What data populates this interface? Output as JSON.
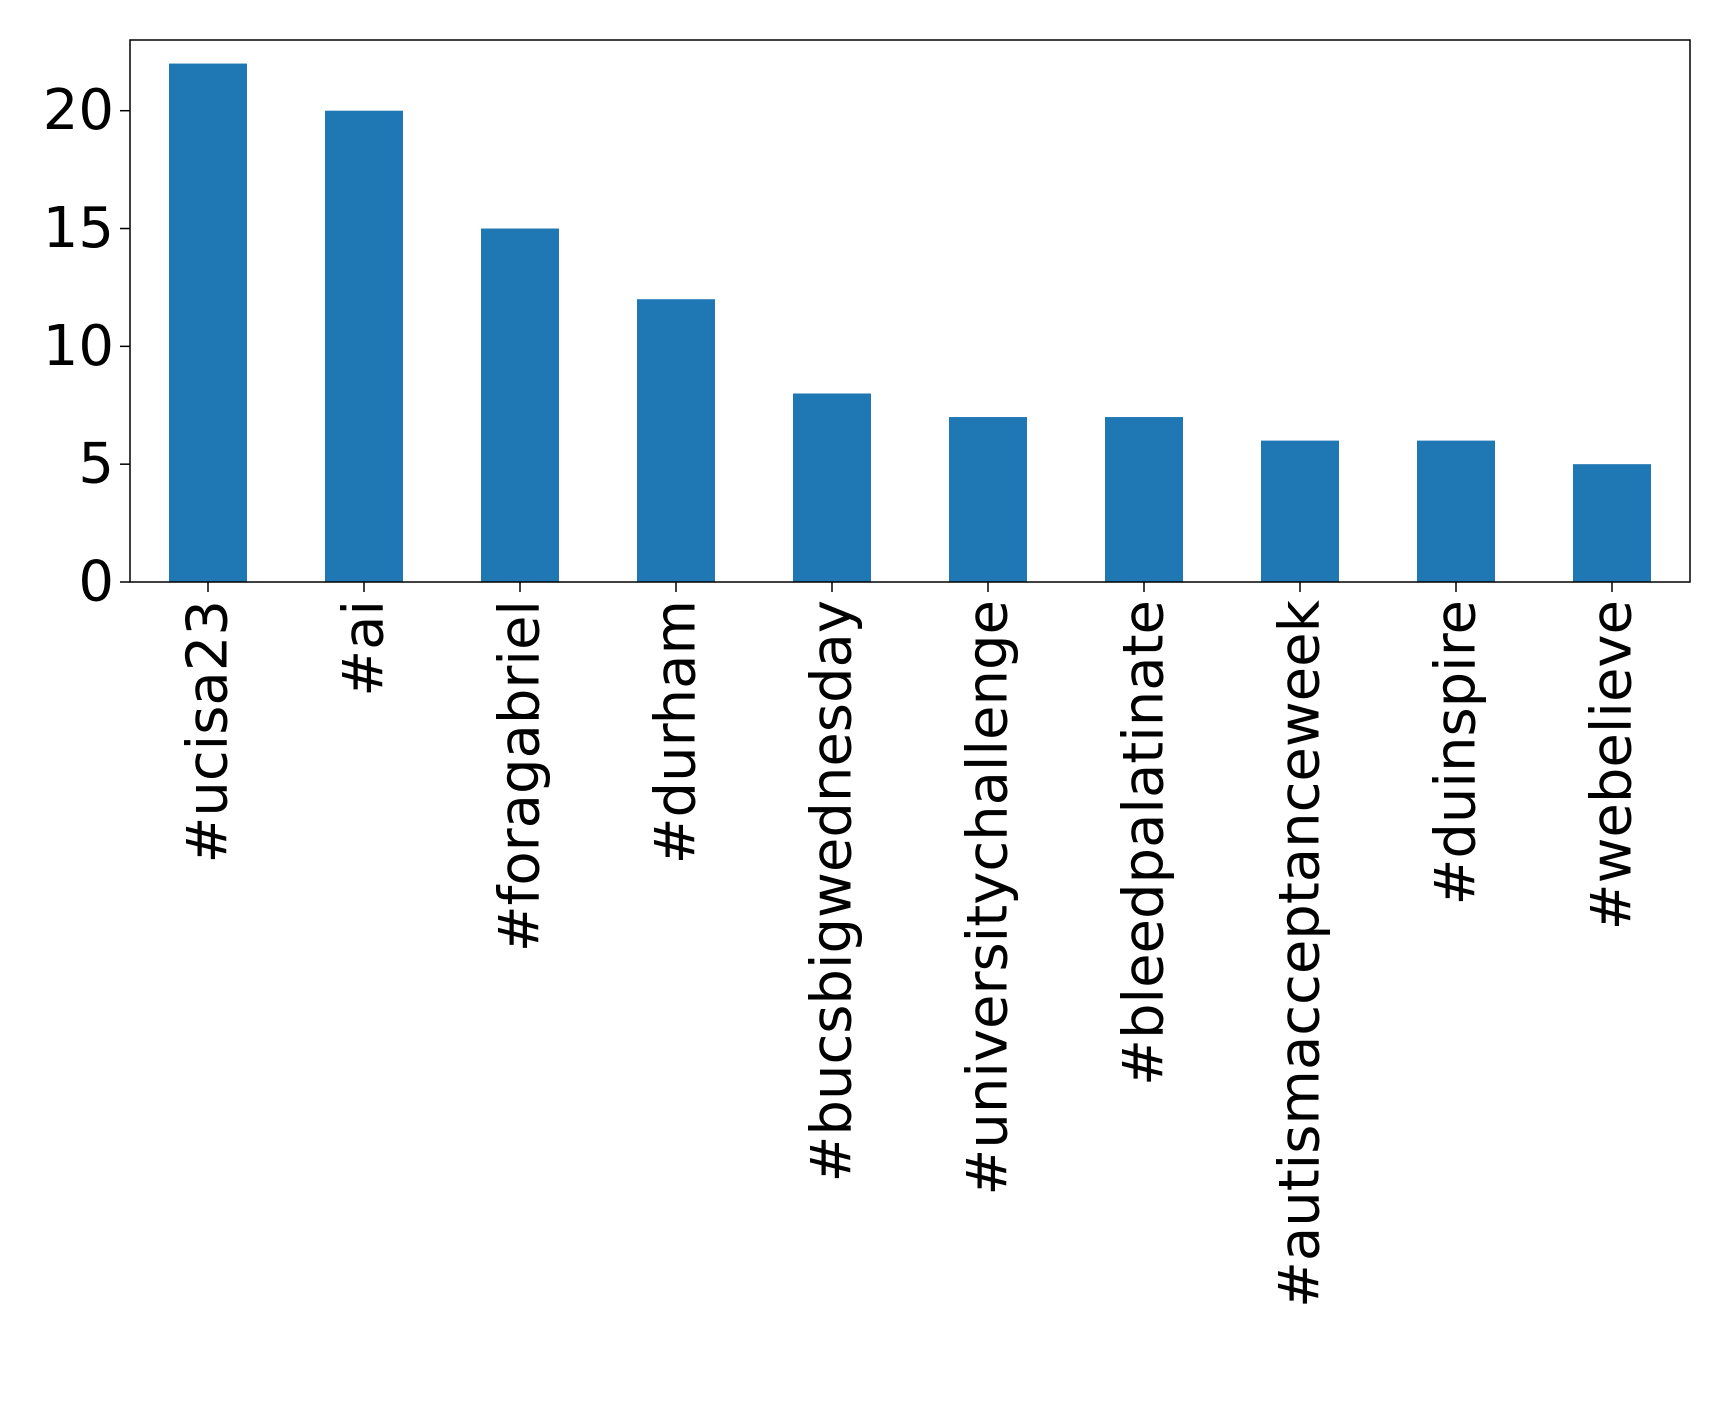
{
  "chart_data": {
    "type": "bar",
    "title": "",
    "xlabel": "",
    "ylabel": "",
    "categories": [
      "#ucisa23",
      "#ai",
      "#foragabriel",
      "#durham",
      "#bucsbigwednesday",
      "#universitychallenge",
      "#bleedpalatinate",
      "#autismacceptanceweek",
      "#duinspire",
      "#webelieve"
    ],
    "values": [
      22,
      20,
      15,
      12,
      8,
      7,
      7,
      6,
      6,
      5
    ],
    "ylim": [
      0,
      23
    ],
    "yticks": [
      0,
      5,
      10,
      15,
      20
    ],
    "grid": false,
    "legend": "none",
    "bar_color": "#1f77b4",
    "x_tick_rotation": "vertical"
  }
}
